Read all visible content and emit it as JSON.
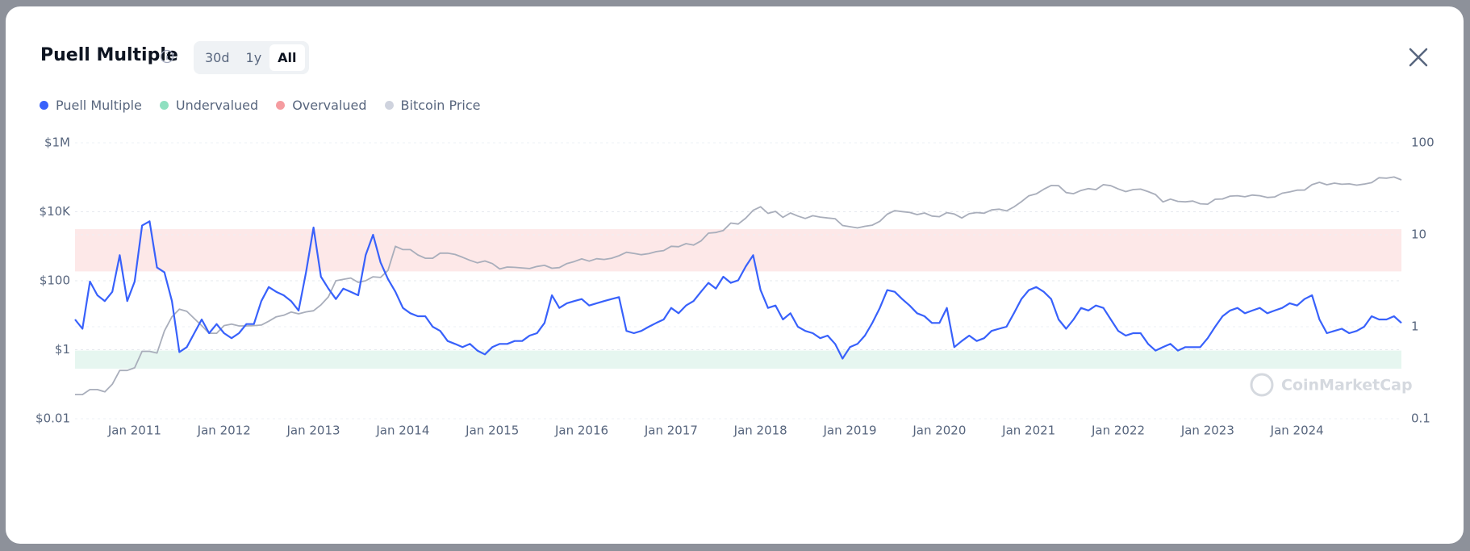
{
  "chart_data": {
    "type": "line",
    "title": "Puell Multiple",
    "ranges": [
      "30d",
      "1y",
      "All"
    ],
    "selected_range": 2,
    "watermark": "CoinMarketCap",
    "x": [
      "May 2010",
      "Jun 2010",
      "Jul 2010",
      "Aug 2010",
      "Sep 2010",
      "Oct 2010",
      "Nov 2010",
      "Dec 2010",
      "Jan 2011",
      "Feb 2011",
      "Mar 2011",
      "Apr 2011",
      "May 2011",
      "Jun 2011",
      "Jul 2011",
      "Aug 2011",
      "Sep 2011",
      "Oct 2011",
      "Nov 2011",
      "Dec 2011",
      "Jan 2012",
      "Feb 2012",
      "Mar 2012",
      "Apr 2012",
      "May 2012",
      "Jun 2012",
      "Jul 2012",
      "Aug 2012",
      "Sep 2012",
      "Oct 2012",
      "Nov 2012",
      "Dec 2012",
      "Jan 2013",
      "Feb 2013",
      "Mar 2013",
      "Apr 2013",
      "May 2013",
      "Jun 2013",
      "Jul 2013",
      "Aug 2013",
      "Sep 2013",
      "Oct 2013",
      "Nov 2013",
      "Dec 2013",
      "Jan 2014",
      "Feb 2014",
      "Mar 2014",
      "Apr 2014",
      "May 2014",
      "Jun 2014",
      "Jul 2014",
      "Aug 2014",
      "Sep 2014",
      "Oct 2014",
      "Nov 2014",
      "Dec 2014",
      "Jan 2015",
      "Feb 2015",
      "Mar 2015",
      "Apr 2015",
      "May 2015",
      "Jun 2015",
      "Jul 2015",
      "Aug 2015",
      "Sep 2015",
      "Oct 2015",
      "Nov 2015",
      "Dec 2015",
      "Jan 2016",
      "Feb 2016",
      "Mar 2016",
      "Apr 2016",
      "May 2016",
      "Jun 2016",
      "Jul 2016",
      "Aug 2016",
      "Sep 2016",
      "Oct 2016",
      "Nov 2016",
      "Dec 2016",
      "Jan 2017",
      "Feb 2017",
      "Mar 2017",
      "Apr 2017",
      "May 2017",
      "Jun 2017",
      "Jul 2017",
      "Aug 2017",
      "Sep 2017",
      "Oct 2017",
      "Nov 2017",
      "Dec 2017",
      "Jan 2018",
      "Feb 2018",
      "Mar 2018",
      "Apr 2018",
      "May 2018",
      "Jun 2018",
      "Jul 2018",
      "Aug 2018",
      "Sep 2018",
      "Oct 2018",
      "Nov 2018",
      "Dec 2018",
      "Jan 2019",
      "Feb 2019",
      "Mar 2019",
      "Apr 2019",
      "May 2019",
      "Jun 2019",
      "Jul 2019",
      "Aug 2019",
      "Sep 2019",
      "Oct 2019",
      "Nov 2019",
      "Dec 2019",
      "Jan 2020",
      "Feb 2020",
      "Mar 2020",
      "Apr 2020",
      "May 2020",
      "Jun 2020",
      "Jul 2020",
      "Aug 2020",
      "Sep 2020",
      "Oct 2020",
      "Nov 2020",
      "Dec 2020",
      "Jan 2021",
      "Feb 2021",
      "Mar 2021",
      "Apr 2021",
      "May 2021",
      "Jun 2021",
      "Jul 2021",
      "Aug 2021",
      "Sep 2021",
      "Oct 2021",
      "Nov 2021",
      "Dec 2021",
      "Jan 2022",
      "Feb 2022",
      "Mar 2022",
      "Apr 2022",
      "May 2022",
      "Jun 2022",
      "Jul 2022",
      "Aug 2022",
      "Sep 2022",
      "Oct 2022",
      "Nov 2022",
      "Dec 2022",
      "Jan 2023",
      "Feb 2023",
      "Mar 2023",
      "Apr 2023",
      "May 2023",
      "Jun 2023",
      "Jul 2023",
      "Aug 2023",
      "Sep 2023",
      "Oct 2023",
      "Nov 2023",
      "Dec 2023",
      "Jan 2024",
      "Feb 2024",
      "Mar 2024",
      "Apr 2024",
      "May 2024",
      "Jun 2024",
      "Jul 2024",
      "Aug 2024",
      "Sep 2024",
      "Oct 2024",
      "Nov 2024",
      "Dec 2024",
      "Jan 2025",
      "Feb 2025",
      "Mar 2025"
    ],
    "xlim": [
      "May 2010",
      "Mar 2025"
    ],
    "xticks": [
      "Jan 2011",
      "Jan 2012",
      "Jan 2013",
      "Jan 2014",
      "Jan 2015",
      "Jan 2016",
      "Jan 2017",
      "Jan 2018",
      "Jan 2019",
      "Jan 2020",
      "Jan 2021",
      "Jan 2022",
      "Jan 2023",
      "Jan 2024"
    ],
    "ylog": true,
    "ylim": [
      0.01,
      1000000
    ],
    "yticks": [
      {
        "value": 0.01,
        "label": "$0.01"
      },
      {
        "value": 1,
        "label": "$1"
      },
      {
        "value": 100,
        "label": "$100"
      },
      {
        "value": 10000,
        "label": "$10K"
      },
      {
        "value": 1000000,
        "label": "$1M"
      }
    ],
    "y2log": true,
    "y2lim": [
      0.1,
      100
    ],
    "y2ticks": [
      0.1,
      1,
      10,
      100
    ],
    "grid": true,
    "series": [
      {
        "name": "Puell Multiple",
        "color": "#3861fb",
        "axis": "y2",
        "values": [
          1.2,
          0.95,
          3.1,
          2.2,
          1.9,
          2.4,
          6,
          1.9,
          3.1,
          12.6,
          14,
          4.4,
          3.9,
          1.9,
          0.53,
          0.6,
          0.85,
          1.2,
          0.85,
          1.07,
          0.85,
          0.75,
          0.85,
          1.07,
          1.07,
          1.9,
          2.7,
          2.4,
          2.2,
          1.9,
          1.5,
          3.9,
          12,
          3.5,
          2.6,
          2.0,
          2.6,
          2.4,
          2.2,
          6,
          10,
          5,
          3.3,
          2.4,
          1.6,
          1.4,
          1.3,
          1.3,
          1.0,
          0.9,
          0.7,
          0.65,
          0.6,
          0.65,
          0.55,
          0.5,
          0.6,
          0.65,
          0.65,
          0.7,
          0.7,
          0.8,
          0.85,
          1.1,
          2.2,
          1.6,
          1.8,
          1.9,
          2.0,
          1.7,
          1.8,
          1.9,
          2.0,
          2.1,
          0.9,
          0.85,
          0.9,
          1.0,
          1.1,
          1.2,
          1.6,
          1.4,
          1.7,
          1.9,
          2.4,
          3.0,
          2.6,
          3.5,
          3.0,
          3.2,
          4.5,
          6,
          2.5,
          1.6,
          1.7,
          1.2,
          1.4,
          1.0,
          0.9,
          0.85,
          0.75,
          0.8,
          0.65,
          0.45,
          0.6,
          0.65,
          0.8,
          1.1,
          1.6,
          2.5,
          2.4,
          2.0,
          1.7,
          1.4,
          1.3,
          1.1,
          1.1,
          1.6,
          0.6,
          0.7,
          0.8,
          0.7,
          0.75,
          0.9,
          0.95,
          1.0,
          1.4,
          2.0,
          2.5,
          2.7,
          2.4,
          2.0,
          1.2,
          0.95,
          1.2,
          1.6,
          1.5,
          1.7,
          1.6,
          1.2,
          0.9,
          0.8,
          0.85,
          0.85,
          0.65,
          0.55,
          0.6,
          0.65,
          0.55,
          0.6,
          0.6,
          0.6,
          0.75,
          1.0,
          1.3,
          1.5,
          1.6,
          1.4,
          1.5,
          1.6,
          1.4,
          1.5,
          1.6,
          1.8,
          1.7,
          2.0,
          2.2,
          1.2,
          0.85,
          0.9,
          0.95,
          0.85,
          0.9,
          1.0,
          1.3,
          1.2,
          1.2,
          1.3,
          1.1
        ]
      },
      {
        "name": "Undervalued",
        "color": "#e6f6f0",
        "legend_color": "#8fe0c0",
        "kind": "band",
        "axis": "y2",
        "range": [
          0.35,
          0.55
        ]
      },
      {
        "name": "Overvalued",
        "color": "#fde8e8",
        "legend_color": "#f59ca0",
        "kind": "band",
        "axis": "y2",
        "range": [
          4,
          11.5
        ]
      },
      {
        "name": "Bitcoin Price",
        "color": "#a9aebb",
        "legend_color": "#cfd3de",
        "axis": "y",
        "values": [
          0.05,
          0.05,
          0.07,
          0.07,
          0.06,
          0.1,
          0.25,
          0.25,
          0.3,
          0.9,
          0.9,
          0.8,
          3.5,
          9,
          15,
          13,
          8,
          5,
          3,
          3,
          5,
          5.5,
          4.9,
          4.9,
          5,
          5.2,
          6.7,
          9,
          10,
          12.4,
          11,
          12.5,
          13.5,
          20,
          34,
          100,
          110,
          120,
          90,
          100,
          130,
          125,
          200,
          1000,
          800,
          800,
          560,
          450,
          450,
          630,
          630,
          580,
          480,
          390,
          330,
          375,
          315,
          220,
          250,
          245,
          235,
          225,
          260,
          280,
          230,
          240,
          315,
          360,
          430,
          370,
          435,
          415,
          450,
          530,
          670,
          620,
          570,
          610,
          700,
          750,
          1000,
          970,
          1190,
          1080,
          1420,
          2400,
          2500,
          2870,
          4700,
          4400,
          6500,
          11000,
          14000,
          9000,
          10300,
          6900,
          9200,
          7500,
          6400,
          7700,
          7000,
          6600,
          6300,
          4000,
          3700,
          3400,
          3800,
          4100,
          5300,
          8500,
          10800,
          10100,
          9600,
          8300,
          9200,
          7500,
          7200,
          9400,
          8600,
          6600,
          8800,
          9500,
          9100,
          11300,
          11900,
          10600,
          13800,
          19600,
          29000,
          33000,
          45000,
          58000,
          57000,
          36000,
          33500,
          41500,
          47000,
          43800,
          61000,
          57000,
          46000,
          38500,
          44000,
          45500,
          38500,
          31700,
          19300,
          23300,
          20000,
          19400,
          20500,
          17000,
          16600,
          23100,
          23600,
          28500,
          29200,
          27200,
          30500,
          29200,
          25900,
          27000,
          34600,
          37700,
          42300,
          42600,
          61000,
          71300,
          60600,
          67500,
          62700,
          64600,
          59000,
          63300,
          70000,
          97000,
          94000,
          102000,
          84000
        ]
      }
    ]
  }
}
